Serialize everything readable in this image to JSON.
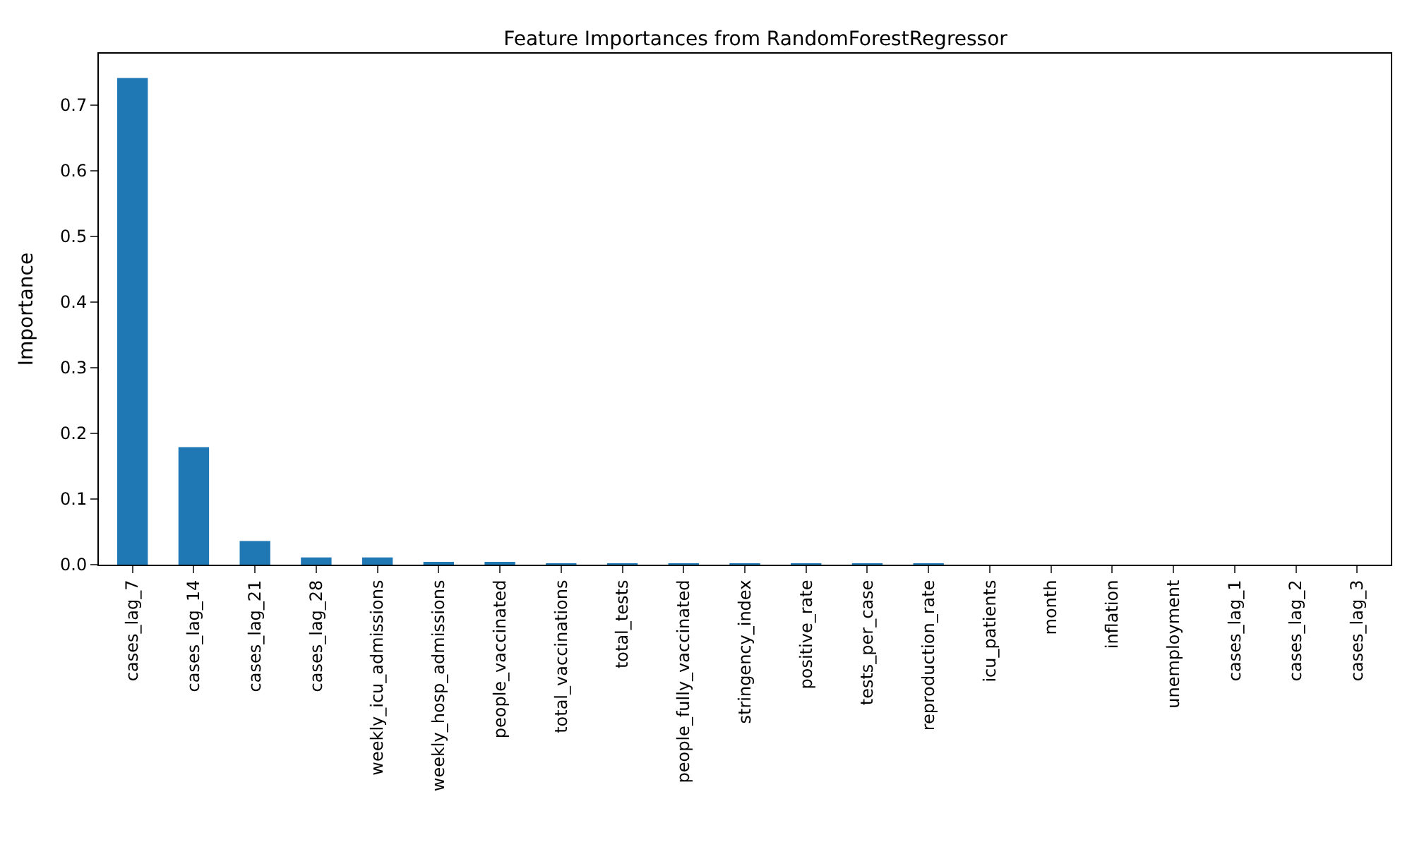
{
  "chart_data": {
    "type": "bar",
    "title": "Feature Importances from RandomForestRegressor",
    "ylabel": "Importance",
    "categories": [
      "cases_lag_7",
      "cases_lag_14",
      "cases_lag_21",
      "cases_lag_28",
      "weekly_icu_admissions",
      "weekly_hosp_admissions",
      "people_vaccinated",
      "total_vaccinations",
      "total_tests",
      "people_fully_vaccinated",
      "stringency_index",
      "positive_rate",
      "tests_per_case",
      "reproduction_rate",
      "icu_patients",
      "month",
      "inflation",
      "unemployment",
      "cases_lag_1",
      "cases_lag_2",
      "cases_lag_3"
    ],
    "values": [
      0.741,
      0.179,
      0.036,
      0.011,
      0.011,
      0.004,
      0.004,
      0.002,
      0.002,
      0.002,
      0.002,
      0.002,
      0.002,
      0.002,
      0,
      0,
      0,
      0,
      0,
      0,
      0
    ],
    "color": "#1f77b4",
    "ylim": [
      0,
      0.778
    ],
    "yticks": [
      {
        "value": 0,
        "label": "0.0"
      },
      0.1,
      0.2,
      0.3,
      0.4,
      0.5,
      0.6,
      0.7
    ]
  }
}
